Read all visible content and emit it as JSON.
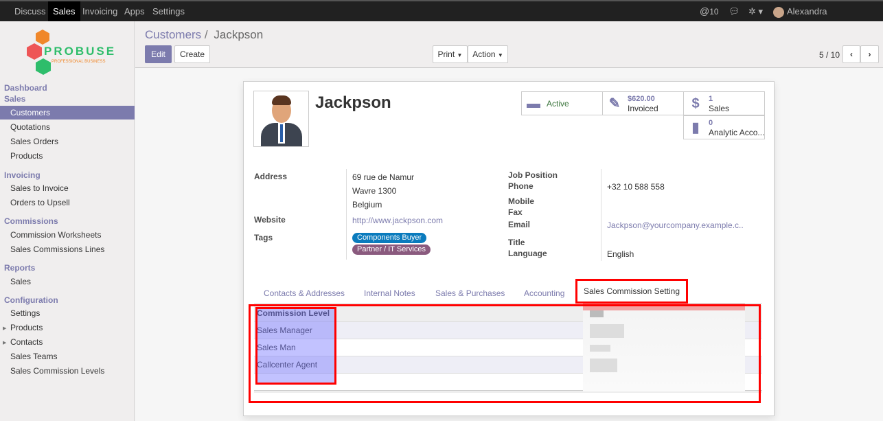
{
  "topbar": {
    "menus": [
      "Discuss",
      "Sales",
      "Invoicing",
      "Apps",
      "Settings"
    ],
    "active": "Sales",
    "mentions": "10",
    "user": "Alexandra (Sales_comm..."
  },
  "logo": {
    "text": "PROBUSE",
    "subtext": "PROFESSIONAL BUSINESS"
  },
  "sidebar": {
    "dashboard": "Dashboard",
    "sales_header": "Sales",
    "sales_items": [
      "Customers",
      "Quotations",
      "Sales Orders",
      "Products"
    ],
    "invoicing_header": "Invoicing",
    "invoicing_items": [
      "Sales to Invoice",
      "Orders to Upsell"
    ],
    "commissions_header": "Commissions",
    "commissions_items": [
      "Commission Worksheets",
      "Sales Commissions Lines"
    ],
    "reports_header": "Reports",
    "reports_items": [
      "Sales"
    ],
    "config_header": "Configuration",
    "config_items": [
      "Settings",
      "Products",
      "Contacts",
      "Sales Teams",
      "Sales Commission Levels"
    ]
  },
  "control": {
    "breadcrumb_parent": "Customers",
    "breadcrumb_sep": "/",
    "breadcrumb_current": "Jackpson",
    "edit": "Edit",
    "create": "Create",
    "print": "Print",
    "action": "Action",
    "pager": "5 / 10"
  },
  "record": {
    "name": "Jackpson",
    "smart_buttons": [
      {
        "value": "",
        "label": "Active",
        "icon": "archive-icon"
      },
      {
        "value": "$620.00",
        "label": "Invoiced",
        "icon": "pencil-square-icon"
      },
      {
        "value": "1",
        "label": "Sales",
        "icon": "dollar-icon"
      },
      {
        "value": "0",
        "label": "Analytic Acco...",
        "icon": "book-icon"
      }
    ],
    "labels": {
      "address": "Address",
      "website": "Website",
      "tags": "Tags",
      "job": "Job Position",
      "phone": "Phone",
      "mobile": "Mobile",
      "fax": "Fax",
      "email": "Email",
      "title": "Title",
      "language": "Language"
    },
    "address": [
      "69 rue de Namur",
      "Wavre 1300",
      "Belgium"
    ],
    "website": "http://www.jackpson.com",
    "tags": [
      {
        "label": "Components Buyer",
        "color": "#0a7bbd"
      },
      {
        "label": "Partner / IT Services",
        "color": "#8a5a7e"
      }
    ],
    "phone": "+32 10 588 558",
    "email": "Jackpson@yourcompany.example.c..",
    "language": "English"
  },
  "tabs": [
    "Contacts & Addresses",
    "Internal Notes",
    "Sales & Purchases",
    "Accounting",
    "Sales Commission Setting"
  ],
  "active_tab": "Sales Commission Setting",
  "commission_table": {
    "header": "Commission Level",
    "rows": [
      "Sales Manager",
      "Sales Man",
      "Callcenter Agent"
    ]
  },
  "colors": {
    "accent": "#7c7bad",
    "highlight": "#ff0000"
  }
}
